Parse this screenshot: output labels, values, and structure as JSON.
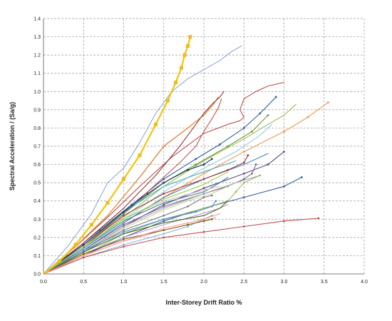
{
  "chart_data": {
    "type": "line",
    "title": "",
    "xlabel": "Inter-Storey Drift Ratio %",
    "ylabel": "Spectral Acceleration / (Sa/g)",
    "xlim": [
      0,
      4.0
    ],
    "ylim": [
      0,
      1.4
    ],
    "xticks": [
      "0.0",
      "0.5",
      "1.0",
      "1.5",
      "2.0",
      "2.5",
      "3.0",
      "3.5",
      "4.0"
    ],
    "yticks": [
      "0.0",
      "0.1",
      "0.2",
      "0.3",
      "0.4",
      "0.5",
      "0.6",
      "0.7",
      "0.8",
      "0.9",
      "1.0",
      "1.1",
      "1.2",
      "1.3",
      "1.4"
    ],
    "grid": true,
    "legend": "none",
    "series": [
      {
        "color": "#f4c20d",
        "marker": true,
        "highlight": true,
        "points": [
          [
            0,
            0
          ],
          [
            0.2,
            0.07
          ],
          [
            0.4,
            0.16
          ],
          [
            0.6,
            0.27
          ],
          [
            0.8,
            0.39
          ],
          [
            1.0,
            0.52
          ],
          [
            1.2,
            0.65
          ],
          [
            1.4,
            0.82
          ],
          [
            1.55,
            0.95
          ],
          [
            1.65,
            1.05
          ],
          [
            1.72,
            1.13
          ],
          [
            1.76,
            1.2
          ],
          [
            1.8,
            1.25
          ],
          [
            1.83,
            1.3
          ]
        ]
      },
      {
        "color": "#8fa8d8",
        "marker": false,
        "points": [
          [
            0,
            0
          ],
          [
            0.3,
            0.15
          ],
          [
            0.6,
            0.33
          ],
          [
            0.8,
            0.5
          ],
          [
            1.0,
            0.58
          ],
          [
            1.2,
            0.72
          ],
          [
            1.4,
            0.88
          ],
          [
            1.6,
            1.0
          ],
          [
            1.8,
            1.07
          ],
          [
            2.0,
            1.12
          ],
          [
            2.2,
            1.17
          ],
          [
            2.35,
            1.22
          ],
          [
            2.47,
            1.25
          ]
        ]
      },
      {
        "color": "#c0504d",
        "marker": false,
        "points": [
          [
            0,
            0
          ],
          [
            0.4,
            0.15
          ],
          [
            0.8,
            0.31
          ],
          [
            1.2,
            0.48
          ],
          [
            1.6,
            0.64
          ],
          [
            2.0,
            0.77
          ],
          [
            2.3,
            0.82
          ],
          [
            2.45,
            0.84
          ],
          [
            2.5,
            0.86
          ],
          [
            2.45,
            0.9
          ],
          [
            2.5,
            0.96
          ],
          [
            2.65,
            1.0
          ],
          [
            2.8,
            1.03
          ],
          [
            3.0,
            1.05
          ]
        ]
      },
      {
        "color": "#2f5f9e",
        "marker": true,
        "points": [
          [
            0,
            0
          ],
          [
            0.3,
            0.1
          ],
          [
            0.7,
            0.24
          ],
          [
            1.1,
            0.38
          ],
          [
            1.5,
            0.52
          ],
          [
            1.9,
            0.63
          ],
          [
            2.2,
            0.71
          ],
          [
            2.5,
            0.8
          ],
          [
            2.7,
            0.88
          ],
          [
            2.9,
            0.97
          ]
        ]
      },
      {
        "color": "#e46c0a",
        "marker": false,
        "points": [
          [
            0,
            0
          ],
          [
            0.4,
            0.15
          ],
          [
            0.8,
            0.32
          ],
          [
            1.2,
            0.53
          ],
          [
            1.5,
            0.7
          ],
          [
            1.8,
            0.8
          ],
          [
            2.0,
            0.87
          ],
          [
            2.12,
            0.93
          ],
          [
            2.18,
            0.97
          ]
        ]
      },
      {
        "color": "#943634",
        "marker": false,
        "points": [
          [
            0,
            0
          ],
          [
            0.5,
            0.17
          ],
          [
            1.0,
            0.36
          ],
          [
            1.4,
            0.54
          ],
          [
            1.7,
            0.7
          ],
          [
            1.9,
            0.82
          ],
          [
            2.0,
            0.88
          ],
          [
            2.1,
            0.93
          ],
          [
            2.2,
            0.97
          ],
          [
            2.25,
            1.0
          ]
        ]
      },
      {
        "color": "#c0504d",
        "marker": false,
        "points": [
          [
            0,
            0
          ],
          [
            0.5,
            0.16
          ],
          [
            1.0,
            0.33
          ],
          [
            1.4,
            0.49
          ],
          [
            1.7,
            0.61
          ],
          [
            1.9,
            0.7
          ],
          [
            2.0,
            0.78
          ],
          [
            2.1,
            0.85
          ],
          [
            2.18,
            0.91
          ],
          [
            2.22,
            0.96
          ]
        ]
      },
      {
        "color": "#f79646",
        "marker": true,
        "points": [
          [
            0,
            0
          ],
          [
            0.5,
            0.13
          ],
          [
            1.0,
            0.28
          ],
          [
            1.5,
            0.42
          ],
          [
            2.0,
            0.55
          ],
          [
            2.5,
            0.67
          ],
          [
            3.0,
            0.78
          ],
          [
            3.3,
            0.86
          ],
          [
            3.55,
            0.94
          ]
        ]
      },
      {
        "color": "#9bbb59",
        "marker": false,
        "points": [
          [
            0,
            0
          ],
          [
            0.5,
            0.14
          ],
          [
            1.0,
            0.31
          ],
          [
            1.5,
            0.48
          ],
          [
            2.0,
            0.62
          ],
          [
            2.5,
            0.74
          ],
          [
            2.8,
            0.82
          ],
          [
            3.0,
            0.87
          ],
          [
            3.15,
            0.93
          ]
        ]
      },
      {
        "color": "#77933c",
        "marker": true,
        "points": [
          [
            0,
            0
          ],
          [
            0.5,
            0.15
          ],
          [
            1.0,
            0.33
          ],
          [
            1.5,
            0.5
          ],
          [
            1.9,
            0.6
          ],
          [
            2.3,
            0.7
          ],
          [
            2.6,
            0.78
          ],
          [
            2.8,
            0.87
          ]
        ]
      },
      {
        "color": "#93cddd",
        "marker": false,
        "points": [
          [
            0,
            0
          ],
          [
            0.5,
            0.14
          ],
          [
            1.0,
            0.3
          ],
          [
            1.5,
            0.45
          ],
          [
            2.0,
            0.58
          ],
          [
            2.4,
            0.67
          ],
          [
            2.7,
            0.76
          ],
          [
            2.85,
            0.82
          ]
        ]
      },
      {
        "color": "#604a7b",
        "marker": true,
        "points": [
          [
            0,
            0
          ],
          [
            0.5,
            0.12
          ],
          [
            1.0,
            0.26
          ],
          [
            1.5,
            0.38
          ],
          [
            2.0,
            0.47
          ],
          [
            2.5,
            0.55
          ],
          [
            2.8,
            0.6
          ],
          [
            3.0,
            0.67
          ]
        ]
      },
      {
        "color": "#4f81bd",
        "marker": false,
        "points": [
          [
            0,
            0
          ],
          [
            0.5,
            0.13
          ],
          [
            1.0,
            0.28
          ],
          [
            1.5,
            0.42
          ],
          [
            2.0,
            0.52
          ],
          [
            2.5,
            0.6
          ],
          [
            2.8,
            0.66
          ]
        ]
      },
      {
        "color": "#376092",
        "marker": true,
        "points": [
          [
            0,
            0
          ],
          [
            0.5,
            0.1
          ],
          [
            1.0,
            0.2
          ],
          [
            1.5,
            0.29
          ],
          [
            2.0,
            0.36
          ],
          [
            2.5,
            0.42
          ],
          [
            3.0,
            0.48
          ],
          [
            3.22,
            0.53
          ]
        ]
      },
      {
        "color": "#953735",
        "marker": true,
        "points": [
          [
            0,
            0
          ],
          [
            0.5,
            0.15
          ],
          [
            1.0,
            0.32
          ],
          [
            1.5,
            0.44
          ],
          [
            2.0,
            0.52
          ],
          [
            2.3,
            0.57
          ],
          [
            2.5,
            0.61
          ],
          [
            2.55,
            0.65
          ]
        ]
      },
      {
        "color": "#4bacc6",
        "marker": false,
        "points": [
          [
            0,
            0
          ],
          [
            0.5,
            0.16
          ],
          [
            1.0,
            0.34
          ],
          [
            1.5,
            0.48
          ],
          [
            2.0,
            0.56
          ],
          [
            2.4,
            0.62
          ]
        ]
      },
      {
        "color": "#8064a2",
        "marker": true,
        "points": [
          [
            0,
            0
          ],
          [
            0.5,
            0.13
          ],
          [
            1.0,
            0.27
          ],
          [
            1.5,
            0.37
          ],
          [
            2.0,
            0.44
          ],
          [
            2.3,
            0.48
          ],
          [
            2.5,
            0.52
          ],
          [
            2.6,
            0.55
          ],
          [
            2.65,
            0.6
          ]
        ]
      },
      {
        "color": "#a6a6a6",
        "marker": false,
        "points": [
          [
            0,
            0
          ],
          [
            0.5,
            0.12
          ],
          [
            1.0,
            0.26
          ],
          [
            1.5,
            0.36
          ],
          [
            2.0,
            0.44
          ],
          [
            2.4,
            0.5
          ],
          [
            2.7,
            0.54
          ]
        ]
      },
      {
        "color": "#17375e",
        "marker": true,
        "points": [
          [
            0,
            0
          ],
          [
            0.5,
            0.16
          ],
          [
            1.0,
            0.34
          ],
          [
            1.3,
            0.44
          ],
          [
            1.5,
            0.5
          ],
          [
            1.8,
            0.57
          ],
          [
            2.0,
            0.6
          ],
          [
            2.1,
            0.63
          ]
        ]
      },
      {
        "color": "#9bbb59",
        "marker": true,
        "points": [
          [
            0,
            0
          ],
          [
            0.5,
            0.1
          ],
          [
            1.0,
            0.22
          ],
          [
            1.5,
            0.3
          ],
          [
            2.0,
            0.36
          ],
          [
            2.3,
            0.4
          ],
          [
            2.4,
            0.45
          ],
          [
            2.5,
            0.5
          ],
          [
            2.7,
            0.54
          ]
        ]
      },
      {
        "color": "#c3d69b",
        "marker": false,
        "points": [
          [
            0,
            0
          ],
          [
            0.5,
            0.12
          ],
          [
            1.0,
            0.25
          ],
          [
            1.5,
            0.35
          ],
          [
            1.8,
            0.4
          ],
          [
            2.1,
            0.44
          ],
          [
            2.4,
            0.5
          ]
        ]
      },
      {
        "color": "#31859c",
        "marker": false,
        "points": [
          [
            0,
            0
          ],
          [
            0.5,
            0.14
          ],
          [
            1.0,
            0.29
          ],
          [
            1.5,
            0.39
          ],
          [
            2.0,
            0.45
          ],
          [
            2.2,
            0.5
          ],
          [
            2.3,
            0.53
          ]
        ]
      },
      {
        "color": "#e6b9b8",
        "marker": false,
        "points": [
          [
            0,
            0
          ],
          [
            0.5,
            0.15
          ],
          [
            1.0,
            0.3
          ],
          [
            1.5,
            0.4
          ],
          [
            2.0,
            0.46
          ],
          [
            2.2,
            0.48
          ]
        ]
      },
      {
        "color": "#7f7f7f",
        "marker": true,
        "points": [
          [
            0,
            0
          ],
          [
            0.5,
            0.12
          ],
          [
            1.0,
            0.24
          ],
          [
            1.5,
            0.32
          ],
          [
            1.8,
            0.37
          ],
          [
            2.0,
            0.42
          ],
          [
            2.1,
            0.43
          ]
        ]
      },
      {
        "color": "#b3a2c7",
        "marker": false,
        "points": [
          [
            0,
            0
          ],
          [
            0.5,
            0.11
          ],
          [
            1.0,
            0.2
          ],
          [
            1.5,
            0.27
          ],
          [
            1.9,
            0.32
          ],
          [
            2.2,
            0.36
          ],
          [
            2.3,
            0.38
          ]
        ]
      },
      {
        "color": "#558ed5",
        "marker": true,
        "points": [
          [
            0,
            0
          ],
          [
            0.5,
            0.13
          ],
          [
            1.0,
            0.23
          ],
          [
            1.5,
            0.3
          ],
          [
            1.9,
            0.34
          ],
          [
            2.1,
            0.37
          ],
          [
            2.15,
            0.4
          ]
        ]
      },
      {
        "color": "#4f6228",
        "marker": false,
        "points": [
          [
            0,
            0
          ],
          [
            0.5,
            0.12
          ],
          [
            1.0,
            0.22
          ],
          [
            1.5,
            0.28
          ],
          [
            2.0,
            0.32
          ],
          [
            2.2,
            0.36
          ],
          [
            2.3,
            0.4
          ]
        ]
      },
      {
        "color": "#d99694",
        "marker": false,
        "points": [
          [
            0,
            0
          ],
          [
            0.5,
            0.1
          ],
          [
            1.0,
            0.18
          ],
          [
            1.5,
            0.24
          ],
          [
            1.9,
            0.28
          ],
          [
            2.1,
            0.3
          ],
          [
            2.15,
            0.31
          ]
        ]
      },
      {
        "color": "#8eb4e3",
        "marker": true,
        "points": [
          [
            0,
            0
          ],
          [
            0.5,
            0.09
          ],
          [
            1.0,
            0.16
          ],
          [
            1.5,
            0.22
          ],
          [
            1.8,
            0.26
          ],
          [
            2.0,
            0.3
          ],
          [
            2.1,
            0.32
          ]
        ]
      },
      {
        "color": "#7f6000",
        "marker": true,
        "points": [
          [
            0,
            0
          ],
          [
            0.5,
            0.11
          ],
          [
            1.0,
            0.19
          ],
          [
            1.5,
            0.24
          ],
          [
            1.8,
            0.27
          ],
          [
            2.0,
            0.29
          ],
          [
            2.1,
            0.3
          ]
        ]
      },
      {
        "color": "#c0504d",
        "marker": true,
        "points": [
          [
            0,
            0
          ],
          [
            0.5,
            0.09
          ],
          [
            1.0,
            0.15
          ],
          [
            1.5,
            0.2
          ],
          [
            2.0,
            0.23
          ],
          [
            2.5,
            0.26
          ],
          [
            3.0,
            0.29
          ],
          [
            3.43,
            0.305
          ]
        ]
      },
      {
        "color": "#92d050",
        "marker": false,
        "points": [
          [
            0,
            0
          ],
          [
            0.5,
            0.15
          ],
          [
            1.0,
            0.3
          ],
          [
            1.5,
            0.41
          ],
          [
            2.0,
            0.49
          ],
          [
            2.3,
            0.56
          ]
        ]
      },
      {
        "color": "#ff9999",
        "marker": false,
        "points": [
          [
            0,
            0
          ],
          [
            0.5,
            0.1
          ],
          [
            1.0,
            0.18
          ],
          [
            1.5,
            0.25
          ],
          [
            2.0,
            0.3
          ],
          [
            2.2,
            0.33
          ]
        ]
      }
    ]
  }
}
